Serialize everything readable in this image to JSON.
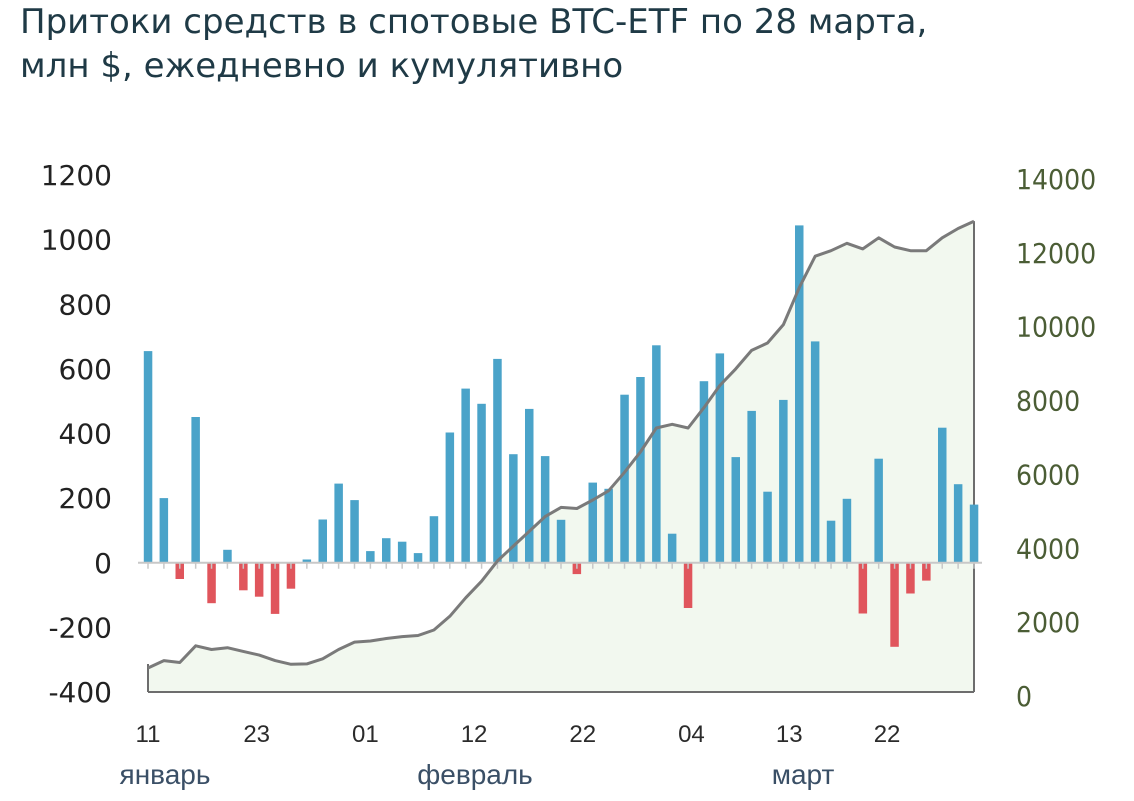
{
  "title_lines": [
    "Притоки средств в спотовые BTC-ETF по 28 марта,",
    "млн $, ежедневно и кумулятивно"
  ],
  "chart_data": {
    "type": "bar",
    "secondary_type": "area",
    "left_axis": {
      "ticks": [
        "1200",
        "1000",
        "800",
        "600",
        "400",
        "200",
        "0",
        "-200",
        "-400"
      ],
      "range": [
        -400,
        1200
      ]
    },
    "right_axis": {
      "ticks": [
        "14000",
        "12000",
        "10000",
        "8000",
        "6000",
        "4000",
        "2000",
        "0"
      ],
      "range": [
        0,
        14000
      ]
    },
    "x_tick_labels": [
      "11",
      "23",
      "01",
      "12",
      "22",
      "04",
      "13",
      "22"
    ],
    "month_labels": [
      "январь",
      "февраль",
      "март"
    ],
    "colors": {
      "positive": "#4aa3c9",
      "negative": "#e0555c",
      "cumulative_line": "#7a7a7a",
      "cumulative_fill": "#f2f8ef"
    },
    "daily": [
      655,
      200,
      -50,
      451,
      -125,
      40,
      -85,
      -105,
      -158,
      -80,
      10,
      134,
      245,
      194,
      36,
      76,
      65,
      30,
      144,
      403,
      539,
      492,
      631,
      336,
      476,
      330,
      133,
      -35,
      248,
      229,
      520,
      575,
      673,
      90,
      -140,
      562,
      648,
      327,
      470,
      220,
      504,
      1044,
      685,
      130,
      198,
      -157,
      322,
      -260,
      -95,
      -55,
      418,
      243,
      180
    ],
    "cumulative": [
      650,
      850,
      800,
      1250,
      1150,
      1200,
      1100,
      1000,
      850,
      750,
      760,
      900,
      1150,
      1350,
      1380,
      1450,
      1500,
      1530,
      1680,
      2050,
      2550,
      3000,
      3550,
      3950,
      4350,
      4750,
      5000,
      4970,
      5200,
      5450,
      5950,
      6500,
      7150,
      7250,
      7150,
      7700,
      8300,
      8750,
      9250,
      9450,
      9950,
      10950,
      11800,
      11950,
      12150,
      12000,
      12300,
      12050,
      11950,
      11950,
      12300,
      12550,
      12750
    ]
  }
}
